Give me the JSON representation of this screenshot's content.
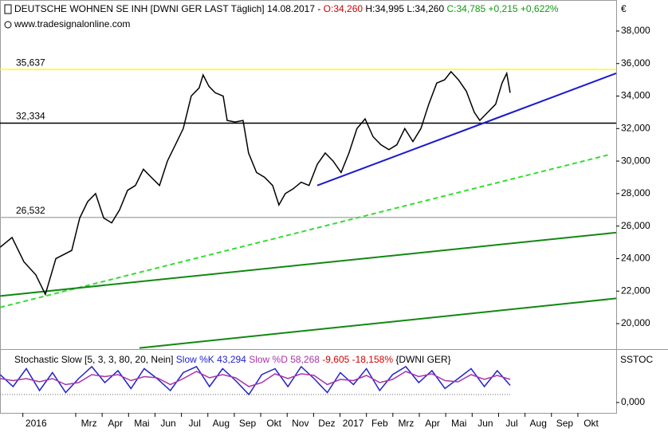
{
  "chart_data": [
    {
      "type": "line",
      "title": "DEUTSCHE WOHNEN SE INH [DWNI GER LAST Täglich] 14.08.2017 -",
      "title_open": "O:34,260",
      "title_range": "H:34,995 L:34,260",
      "title_close": "C:34,785 +0,215 +0,622%",
      "subtitle": "www.tradesignalonline.com",
      "currency": "€",
      "color": "#000000",
      "x": [
        -0.86,
        -0.41,
        0.04,
        0.49,
        0.85,
        1.25,
        1.85,
        2.15,
        2.45,
        2.75,
        3.06,
        3.36,
        3.66,
        3.96,
        4.26,
        4.56,
        4.86,
        5.17,
        5.47,
        5.77,
        6.07,
        6.37,
        6.67,
        6.82,
        7.04,
        7.28,
        7.58,
        7.73,
        8.03,
        8.33,
        8.54,
        8.84,
        9.15,
        9.45,
        9.69,
        9.93,
        10.23,
        10.53,
        10.83,
        11.14,
        11.44,
        11.74,
        12.04,
        12.34,
        12.64,
        12.95,
        13.25,
        13.55,
        13.85,
        14.15,
        14.45,
        14.76,
        15.06,
        15.36,
        15.66,
        15.96,
        16.2,
        16.48,
        16.78,
        17.08,
        17.29,
        17.59,
        17.89,
        18.13,
        18.31,
        18.44
      ],
      "values": [
        24700,
        25300,
        23800,
        23000,
        21800,
        24000,
        24500,
        26500,
        27500,
        28000,
        26500,
        26200,
        27000,
        28200,
        28500,
        29500,
        29000,
        28500,
        30000,
        31000,
        32000,
        34000,
        34500,
        35300,
        34600,
        34200,
        34000,
        32500,
        32400,
        32500,
        30500,
        29300,
        29000,
        28500,
        27300,
        28000,
        28300,
        28700,
        28500,
        29800,
        30500,
        30000,
        29300,
        30500,
        32000,
        32600,
        31500,
        31000,
        30700,
        31000,
        32000,
        31200,
        32000,
        33500,
        34800,
        35000,
        35500,
        35000,
        34300,
        33000,
        32500,
        33000,
        33500,
        34800,
        35400,
        34200
      ],
      "xlim": [
        -0.865,
        22.45
      ],
      "xticks": [
        {
          "value": 0,
          "label": "2016"
        },
        {
          "value": 2,
          "label": "Mrz"
        },
        {
          "value": 3,
          "label": "Apr"
        },
        {
          "value": 4,
          "label": "Mai"
        },
        {
          "value": 5,
          "label": "Jun"
        },
        {
          "value": 6,
          "label": "Jul"
        },
        {
          "value": 7,
          "label": "Aug"
        },
        {
          "value": 8,
          "label": "Sep"
        },
        {
          "value": 9,
          "label": "Okt"
        },
        {
          "value": 10,
          "label": "Nov"
        },
        {
          "value": 11,
          "label": "Dez"
        },
        {
          "value": 12,
          "label": "2017"
        },
        {
          "value": 13,
          "label": "Feb"
        },
        {
          "value": 14,
          "label": "Mrz"
        },
        {
          "value": 15,
          "label": "Apr"
        },
        {
          "value": 16,
          "label": "Mai"
        },
        {
          "value": 17,
          "label": "Jun"
        },
        {
          "value": 18,
          "label": "Jul"
        },
        {
          "value": 19,
          "label": "Aug"
        },
        {
          "value": 20,
          "label": "Sep"
        },
        {
          "value": 21,
          "label": "Okt"
        }
      ],
      "ylim": [
        18480,
        39910
      ],
      "yticks": [
        {
          "value": 20000,
          "label": "20,000"
        },
        {
          "value": 22000,
          "label": "22,000"
        },
        {
          "value": 24000,
          "label": "24,000"
        },
        {
          "value": 26000,
          "label": "26,000"
        },
        {
          "value": 28000,
          "label": "28,000"
        },
        {
          "value": 30000,
          "label": "30,000"
        },
        {
          "value": 32000,
          "label": "32,000"
        },
        {
          "value": 34000,
          "label": "34,000"
        },
        {
          "value": 36000,
          "label": "36,000"
        },
        {
          "value": 38000,
          "label": "38,000"
        }
      ],
      "levels": [
        {
          "value": 35637,
          "label": "35,637",
          "color": "#ffff00"
        },
        {
          "value": 32334,
          "label": "32,334",
          "color": "#000000"
        },
        {
          "value": 26532,
          "label": "26,532",
          "color": "#b0b0b0"
        }
      ],
      "trendlines": [
        {
          "x": [
            11.14,
            22.45
          ],
          "values": [
            28500,
            35400
          ],
          "color": "#1a1acc",
          "dash": false
        },
        {
          "x": [
            -0.86,
            22.2
          ],
          "values": [
            21000,
            30400
          ],
          "color": "#33dd33",
          "dash": true
        },
        {
          "x": [
            -0.86,
            22.45
          ],
          "values": [
            21700,
            25600
          ],
          "color": "#118811",
          "dash": false
        },
        {
          "x": [
            4.41,
            22.45
          ],
          "values": [
            18500,
            21550
          ],
          "color": "#118811",
          "dash": false
        }
      ]
    },
    {
      "type": "line",
      "title": "Stochastic Slow [5, 3, 3, 80, 20, Nein]",
      "label_k": "Slow %K 43,294",
      "label_d": "Slow %D 58,268",
      "label_change": "-9,605 -18,158%",
      "label_symbol": "{DWNI GER}",
      "axis_label": "SSTOC",
      "x": [
        -0.86,
        -0.37,
        0.13,
        0.63,
        1.12,
        1.62,
        2.11,
        2.61,
        3.1,
        3.6,
        4.09,
        4.59,
        5.08,
        5.58,
        6.07,
        6.57,
        7.06,
        7.56,
        8.05,
        8.55,
        9.04,
        9.54,
        10.03,
        10.53,
        11.02,
        11.52,
        12.01,
        12.51,
        13.0,
        13.5,
        13.99,
        14.49,
        14.98,
        15.48,
        15.97,
        16.47,
        16.96,
        17.46,
        17.95,
        18.44
      ],
      "series": [
        {
          "color": "#2222cc",
          "values": [
            70,
            40,
            85,
            30,
            75,
            25,
            60,
            90,
            50,
            80,
            35,
            85,
            60,
            30,
            75,
            90,
            40,
            85,
            55,
            20,
            70,
            85,
            40,
            90,
            60,
            25,
            75,
            45,
            85,
            30,
            70,
            90,
            50,
            80,
            35,
            60,
            85,
            40,
            80,
            43
          ]
        },
        {
          "color": "#aa33aa",
          "values": [
            60,
            55,
            60,
            52,
            60,
            45,
            50,
            70,
            65,
            70,
            55,
            65,
            62,
            45,
            60,
            78,
            62,
            70,
            62,
            40,
            50,
            72,
            60,
            72,
            68,
            45,
            58,
            55,
            68,
            50,
            58,
            78,
            65,
            72,
            55,
            52,
            70,
            58,
            68,
            58
          ]
        }
      ],
      "ylim": [
        -26,
        130
      ],
      "yticks": [
        {
          "value": 0,
          "label": "0,000"
        }
      ],
      "reference": 20
    }
  ]
}
